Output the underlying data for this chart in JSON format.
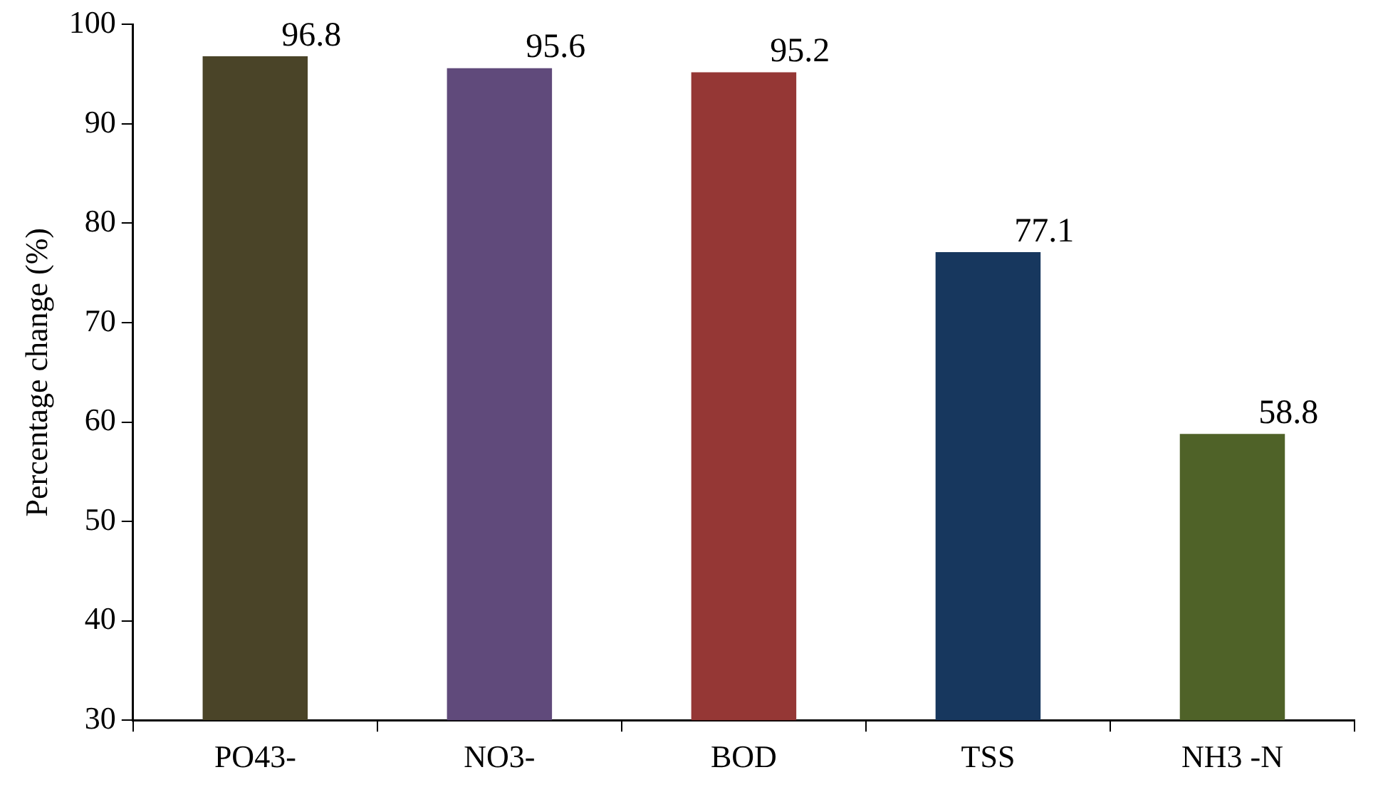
{
  "chart_data": {
    "type": "bar",
    "ylabel": "Percentage change (%)",
    "categories": [
      "PO43-",
      "NO3-",
      "BOD",
      "TSS",
      "NH3 -N"
    ],
    "values": [
      96.8,
      95.6,
      95.2,
      77.1,
      58.8
    ],
    "colors": [
      "#4a4428",
      "#604a7b",
      "#953735",
      "#17375e",
      "#4f6228"
    ],
    "ylim": [
      30,
      100
    ],
    "yticks": [
      30,
      40,
      50,
      60,
      70,
      80,
      90,
      100
    ],
    "data_labels": true,
    "grid": false,
    "legend": false
  }
}
